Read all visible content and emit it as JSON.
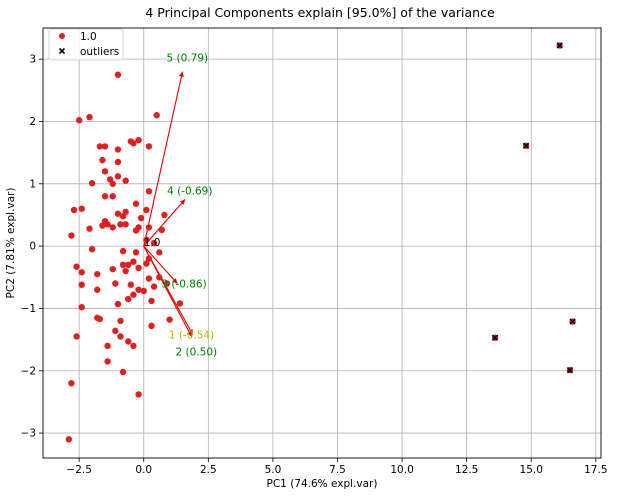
{
  "chart_data": {
    "type": "scatter",
    "title": "4 Principal Components explain [95.0%] of the variance",
    "xlabel": "PC1 (74.6% expl.var)",
    "ylabel": "PC2 (7.81% expl.var)",
    "xlim": [
      -3.9,
      17.7
    ],
    "ylim": [
      -3.4,
      3.5
    ],
    "xticks": [
      -2.5,
      0.0,
      2.5,
      5.0,
      7.5,
      10.0,
      12.5,
      15.0,
      17.5
    ],
    "xtick_labels": [
      "−2.5",
      "0.0",
      "2.5",
      "5.0",
      "7.5",
      "10.0",
      "12.5",
      "15.0",
      "17.5"
    ],
    "yticks": [
      -3,
      -2,
      -1,
      0,
      1,
      2,
      3
    ],
    "ytick_labels": [
      "−3",
      "−2",
      "−1",
      "0",
      "1",
      "2",
      "3"
    ],
    "grid": true,
    "legend_position": "top-left",
    "series": [
      {
        "name": "1.0",
        "color": "#e02020",
        "marker": "circle",
        "points": [
          [
            -2.9,
            -3.1
          ],
          [
            -2.8,
            -2.2
          ],
          [
            -2.8,
            0.17
          ],
          [
            -2.7,
            0.58
          ],
          [
            -2.6,
            -0.33
          ],
          [
            -2.6,
            -1.45
          ],
          [
            -2.5,
            2.02
          ],
          [
            -2.4,
            0.6
          ],
          [
            -2.4,
            -0.42
          ],
          [
            -2.4,
            -0.62
          ],
          [
            -2.4,
            -0.98
          ],
          [
            -2.1,
            2.07
          ],
          [
            -2.1,
            0.28
          ],
          [
            -2.0,
            -0.05
          ],
          [
            -2.0,
            1.01
          ],
          [
            -1.8,
            -0.45
          ],
          [
            -1.8,
            -0.7
          ],
          [
            -1.8,
            -1.15
          ],
          [
            -1.7,
            -1.17
          ],
          [
            -1.7,
            1.6
          ],
          [
            -1.6,
            1.38
          ],
          [
            -1.6,
            0.33
          ],
          [
            -1.5,
            1.6
          ],
          [
            -1.5,
            1.2
          ],
          [
            -1.5,
            0.8
          ],
          [
            -1.5,
            0.4
          ],
          [
            -1.4,
            0.35
          ],
          [
            -1.4,
            -1.6
          ],
          [
            -1.4,
            -1.85
          ],
          [
            -1.3,
            1.07
          ],
          [
            -1.2,
            1.0
          ],
          [
            -1.2,
            0.8
          ],
          [
            -1.2,
            0.3
          ],
          [
            -1.2,
            -0.37
          ],
          [
            -1.1,
            -0.6
          ],
          [
            -1.1,
            -1.36
          ],
          [
            -1.0,
            2.75
          ],
          [
            -1.0,
            1.55
          ],
          [
            -1.0,
            1.35
          ],
          [
            -1.0,
            1.12
          ],
          [
            -1.0,
            0.52
          ],
          [
            -1.0,
            -0.93
          ],
          [
            -0.9,
            0.35
          ],
          [
            -0.9,
            -1.2
          ],
          [
            -0.9,
            -1.45
          ],
          [
            -0.8,
            0.48
          ],
          [
            -0.8,
            -0.08
          ],
          [
            -0.8,
            -0.3
          ],
          [
            -0.8,
            -2.02
          ],
          [
            -0.7,
            1.05
          ],
          [
            -0.7,
            0.55
          ],
          [
            -0.7,
            0.35
          ],
          [
            -0.7,
            -0.4
          ],
          [
            -0.6,
            -0.3
          ],
          [
            -0.6,
            -0.85
          ],
          [
            -0.6,
            -1.53
          ],
          [
            -0.5,
            1.68
          ],
          [
            -0.5,
            -0.62
          ],
          [
            -0.4,
            1.65
          ],
          [
            -0.4,
            -0.25
          ],
          [
            -0.4,
            -0.78
          ],
          [
            -0.4,
            -1.6
          ],
          [
            -0.3,
            0.68
          ],
          [
            -0.3,
            0.25
          ],
          [
            -0.3,
            -0.1
          ],
          [
            -0.2,
            1.7
          ],
          [
            -0.2,
            0.3
          ],
          [
            -0.2,
            -0.35
          ],
          [
            -0.2,
            -0.7
          ],
          [
            -0.2,
            -2.38
          ],
          [
            -0.1,
            0.45
          ],
          [
            0.0,
            -0.72
          ],
          [
            0.1,
            0.58
          ],
          [
            0.1,
            0.1
          ],
          [
            0.1,
            -0.28
          ],
          [
            0.2,
            1.6
          ],
          [
            0.2,
            0.88
          ],
          [
            0.2,
            0.3
          ],
          [
            0.2,
            -0.2
          ],
          [
            0.2,
            -0.52
          ],
          [
            0.3,
            -0.88
          ],
          [
            0.3,
            -1.28
          ],
          [
            0.4,
            0.05
          ],
          [
            0.4,
            -0.65
          ],
          [
            0.5,
            2.1
          ],
          [
            0.6,
            -0.1
          ],
          [
            0.6,
            -0.5
          ],
          [
            0.7,
            0.26
          ],
          [
            0.8,
            0.5
          ],
          [
            0.9,
            -0.6
          ],
          [
            1.0,
            -1.18
          ],
          [
            1.4,
            -0.92
          ]
        ]
      },
      {
        "name": "outliers",
        "color": "#000000",
        "marker": "x",
        "points": [
          [
            13.6,
            -1.47
          ],
          [
            14.8,
            1.61
          ],
          [
            16.1,
            3.22
          ],
          [
            16.5,
            -1.99
          ],
          [
            16.6,
            -1.21
          ]
        ]
      }
    ],
    "loadings": [
      {
        "label": "5 (0.79)",
        "end": [
          1.5,
          2.8
        ],
        "label_color": "#008000"
      },
      {
        "label": "4 (-0.69)",
        "end": [
          1.6,
          0.75
        ],
        "label_color": "#008000"
      },
      {
        "label": "3 (-0.86)",
        "end": [
          1.3,
          -0.6
        ],
        "label_color": "#008000"
      },
      {
        "label": "1 (-0.54)",
        "end": [
          1.9,
          -1.42
        ],
        "label_color": "#b8b800"
      },
      {
        "label": "2 (0.50)",
        "end": [
          1.85,
          -1.45
        ],
        "label_color": "#008000"
      }
    ],
    "origin_label": "1.0"
  }
}
